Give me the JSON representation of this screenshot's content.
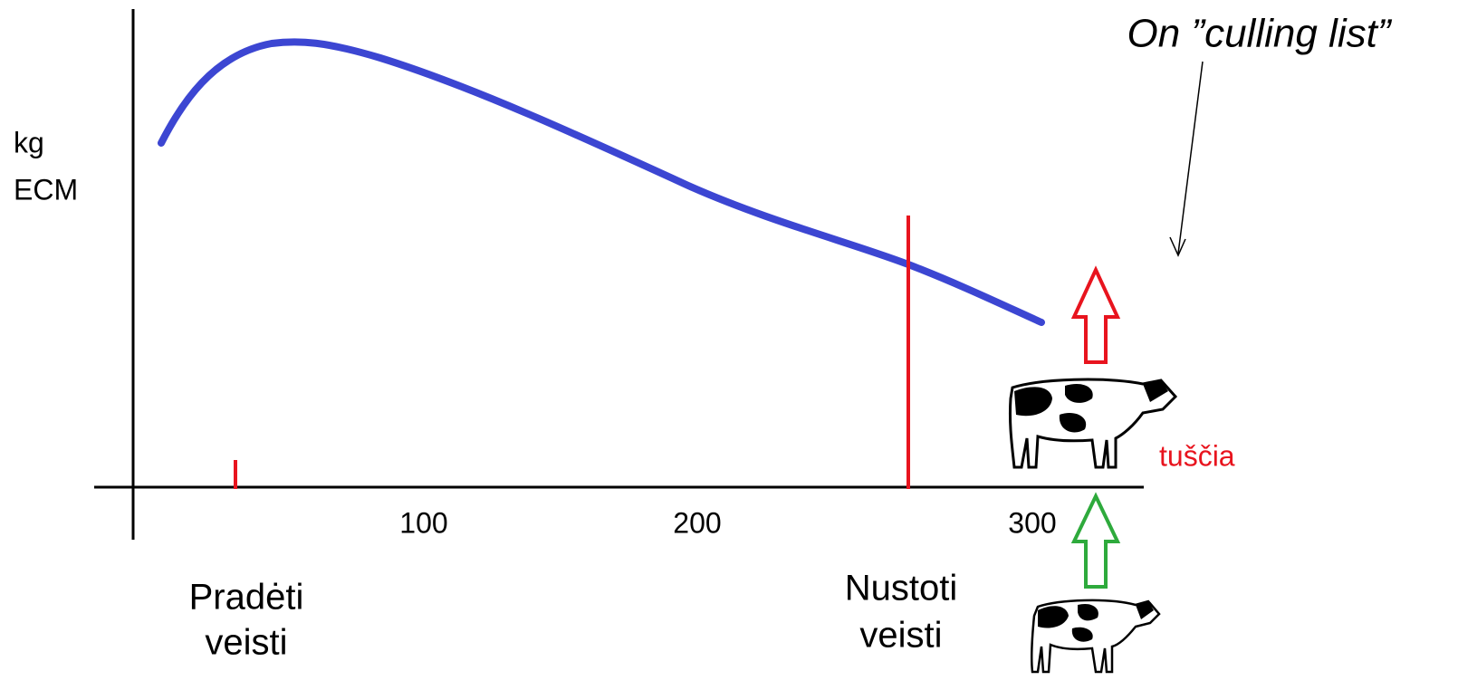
{
  "y_axis_label": {
    "lines": [
      "kg",
      "ECM"
    ]
  },
  "x_tick_labels": [
    "100",
    "200",
    "300"
  ],
  "start_label": {
    "lines": [
      "Pradėti",
      "veisti"
    ]
  },
  "stop_label": {
    "lines": [
      "Nustoti",
      "veisti"
    ]
  },
  "status_label": "tuščia",
  "annotation": "On ”culling list”"
}
